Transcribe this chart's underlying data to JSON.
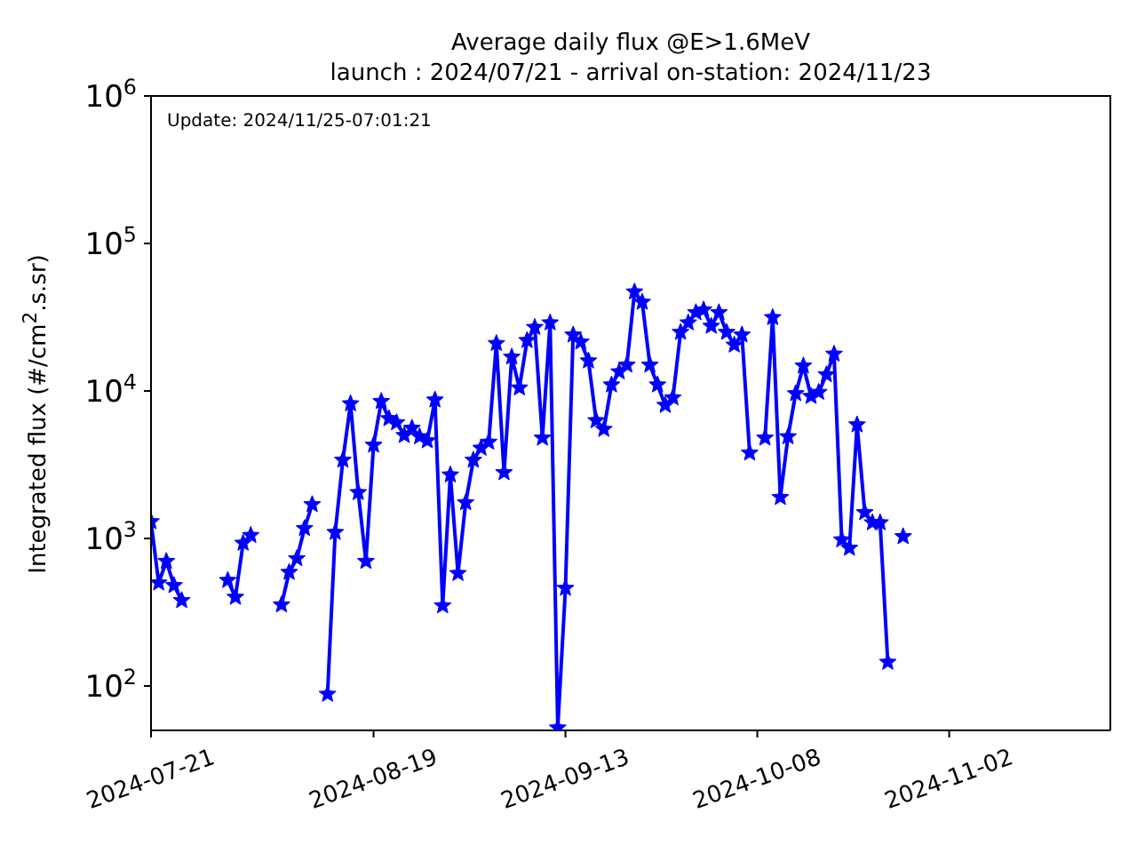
{
  "chart_data": {
    "type": "line",
    "title": "Average daily flux @E>1.6MeV",
    "subtitle": "launch : 2024/07/21 - arrival on-station: 2024/11/23",
    "ylabel": "Integrated flux (#/cm$^{2}$.s.sr)",
    "annotations": [
      "Update: 2024/11/25-07:01:21"
    ],
    "x": [
      "2024-07-21",
      "2024-07-22",
      "2024-07-23",
      "2024-07-24",
      "2024-07-25",
      "2024-07-26",
      "2024-07-27",
      "2024-07-28",
      "2024-07-29",
      "2024-07-30",
      "2024-07-31",
      "2024-08-01",
      "2024-08-02",
      "2024-08-03",
      "2024-08-04",
      "2024-08-05",
      "2024-08-06",
      "2024-08-07",
      "2024-08-08",
      "2024-08-09",
      "2024-08-10",
      "2024-08-11",
      "2024-08-12",
      "2024-08-13",
      "2024-08-14",
      "2024-08-15",
      "2024-08-16",
      "2024-08-17",
      "2024-08-18",
      "2024-08-19",
      "2024-08-20",
      "2024-08-21",
      "2024-08-22",
      "2024-08-23",
      "2024-08-24",
      "2024-08-25",
      "2024-08-26",
      "2024-08-27",
      "2024-08-28",
      "2024-08-29",
      "2024-08-30",
      "2024-08-31",
      "2024-09-01",
      "2024-09-02",
      "2024-09-03",
      "2024-09-04",
      "2024-09-05",
      "2024-09-06",
      "2024-09-07",
      "2024-09-08",
      "2024-09-09",
      "2024-09-10",
      "2024-09-11",
      "2024-09-12",
      "2024-09-13",
      "2024-09-14",
      "2024-09-15",
      "2024-09-16",
      "2024-09-17",
      "2024-09-18",
      "2024-09-19",
      "2024-09-20",
      "2024-09-21",
      "2024-09-22",
      "2024-09-23",
      "2024-09-24",
      "2024-09-25",
      "2024-09-26",
      "2024-09-27",
      "2024-09-28",
      "2024-09-29",
      "2024-09-30",
      "2024-10-01",
      "2024-10-02",
      "2024-10-03",
      "2024-10-04",
      "2024-10-05",
      "2024-10-06",
      "2024-10-07",
      "2024-10-08",
      "2024-10-09",
      "2024-10-10",
      "2024-10-11",
      "2024-10-12",
      "2024-10-13",
      "2024-10-14",
      "2024-10-15",
      "2024-10-16",
      "2024-10-17",
      "2024-10-18",
      "2024-10-19",
      "2024-10-20",
      "2024-10-21",
      "2024-10-22",
      "2024-10-23",
      "2024-10-24",
      "2024-10-25",
      "2024-10-26",
      "2024-10-27"
    ],
    "values": [
      1300,
      500,
      700,
      480,
      380,
      null,
      null,
      null,
      null,
      null,
      520,
      400,
      930,
      1050,
      null,
      null,
      null,
      355,
      590,
      730,
      1170,
      1700,
      null,
      88,
      1100,
      3400,
      8200,
      2050,
      700,
      4300,
      8500,
      6500,
      6100,
      5000,
      5600,
      4900,
      4600,
      8700,
      350,
      2700,
      580,
      1750,
      3400,
      4100,
      4500,
      21000,
      2800,
      17000,
      10500,
      22000,
      27000,
      4800,
      29000,
      52,
      460,
      24000,
      21500,
      16000,
      6300,
      5500,
      11000,
      13500,
      15000,
      47000,
      40000,
      15000,
      11000,
      8000,
      9000,
      25000,
      29000,
      34000,
      35500,
      27500,
      34000,
      25000,
      20500,
      24000,
      3800,
      null,
      4800,
      31500,
      1900,
      4900,
      9600,
      14800,
      9200,
      9800,
      12900,
      17800,
      980,
      860,
      5900,
      1500,
      1280,
      1280,
      145,
      null,
      1030
    ],
    "color": "#0000ff",
    "marker": "star",
    "line_style": "solid",
    "log": "y",
    "xlim": [
      "2024-07-21",
      "2024-11-23"
    ],
    "xticks": [
      "2024-07-21",
      "2024-08-19",
      "2024-09-13",
      "2024-10-08",
      "2024-11-02"
    ],
    "ylim": [
      50,
      1000000
    ],
    "yticks": [
      {
        "value": 100,
        "label": "10$^{2}$"
      },
      {
        "value": 1000,
        "label": "10$^{3}$"
      },
      {
        "value": 10000,
        "label": "10$^{4}$"
      },
      {
        "value": 100000,
        "label": "10$^{5}$"
      },
      {
        "value": 1000000,
        "label": "10$^{6}$"
      }
    ]
  }
}
